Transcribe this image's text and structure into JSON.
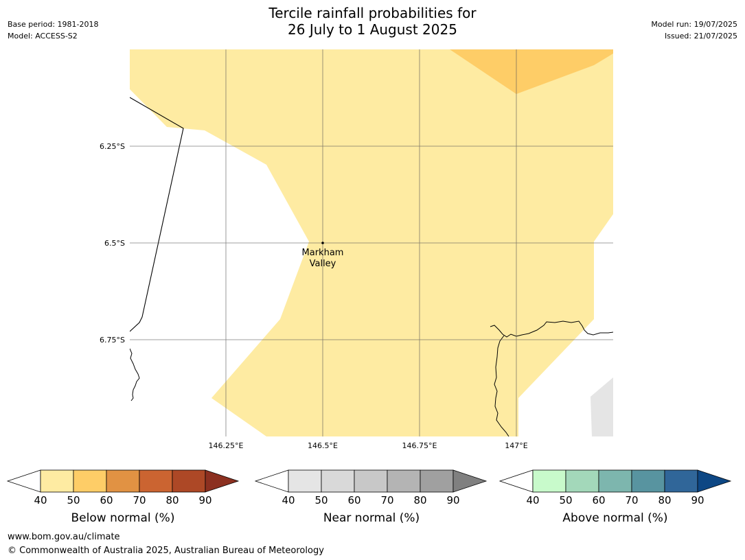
{
  "header": {
    "title_line1": "Tercile rainfall probabilities for",
    "title_line2": "26 July to 1 August 2025",
    "base_period": "Base period: 1981-2018",
    "model": "Model: ACCESS-S2",
    "model_run": "Model run: 19/07/2025",
    "issued": "Issued: 21/07/2025"
  },
  "map": {
    "lat_labels": [
      "6.25°S",
      "6.5°S",
      "6.75°S"
    ],
    "lon_labels": [
      "146.25°E",
      "146.5°E",
      "146.75°E",
      "147°E"
    ],
    "place": {
      "name_line1": "Markham",
      "name_line2": "Valley"
    },
    "colors": {
      "below_40_50": "#FEEBA2",
      "below_50_60": "#FECD67",
      "near_40_50": "#E5E5E5",
      "coast": "#000000",
      "grid": "#555555"
    }
  },
  "colorbars": [
    {
      "label": "Below normal (%)",
      "ticks": [
        "40",
        "50",
        "60",
        "70",
        "80",
        "90"
      ],
      "colors": [
        "#FEEBA2",
        "#FECD67",
        "#E19243",
        "#CB6431",
        "#AD4826",
        "#8C3020"
      ]
    },
    {
      "label": "Near normal (%)",
      "ticks": [
        "40",
        "50",
        "60",
        "70",
        "80",
        "90"
      ],
      "colors": [
        "#E5E5E5",
        "#D9D9D9",
        "#C8C8C8",
        "#B4B4B4",
        "#A0A0A0",
        "#808080"
      ]
    },
    {
      "label": "Above normal (%)",
      "ticks": [
        "40",
        "50",
        "60",
        "70",
        "80",
        "90"
      ],
      "colors": [
        "#C8FACB",
        "#A3D8BA",
        "#7DB6AE",
        "#5894A0",
        "#306699",
        "#0D4784"
      ]
    }
  ],
  "footer": {
    "url": "www.bom.gov.au/climate",
    "copyright": "© Commonwealth of Australia 2025, Australian Bureau of Meteorology"
  }
}
